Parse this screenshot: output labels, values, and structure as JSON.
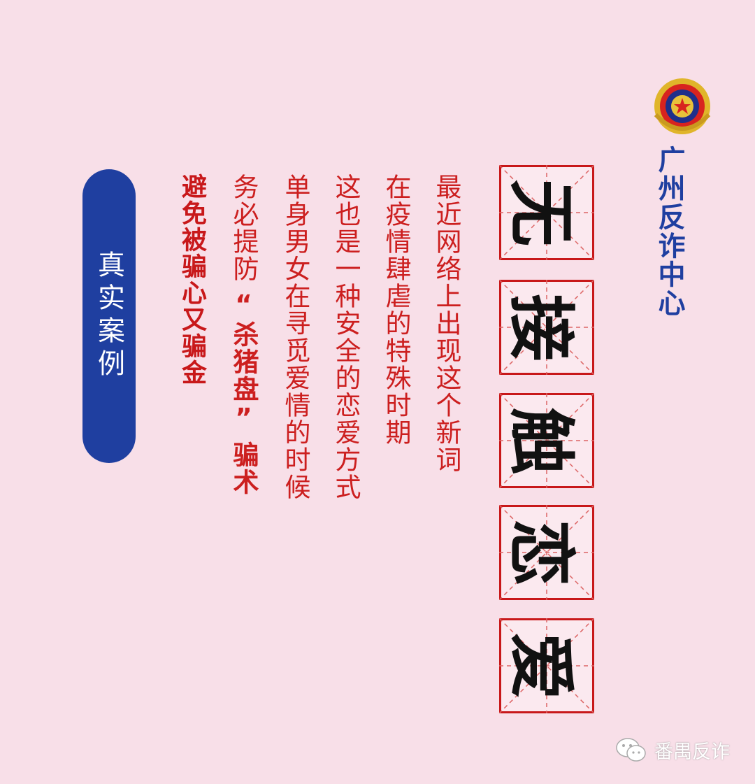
{
  "org_name": "广州反诈中心",
  "title_chars": [
    "无",
    "接",
    "触",
    "恋",
    "爱"
  ],
  "body_lines": [
    "最近网络上出现这个新词",
    "在疫情肆虐的特殊时期",
    "这也是一种安全的恋爱方式",
    "单身男女在寻觅爱情的时候"
  ],
  "warning_prefix": "务必提防",
  "warning_term": "“杀猪盘”",
  "warning_suffix": "骗术",
  "closing_line": "避免被骗心又骗金",
  "section_label": "真实案例",
  "watermark_text": "番禺反诈",
  "colors": {
    "background": "#f8dfe8",
    "accent_red": "#cc1f1f",
    "accent_blue": "#1f3fa0"
  }
}
